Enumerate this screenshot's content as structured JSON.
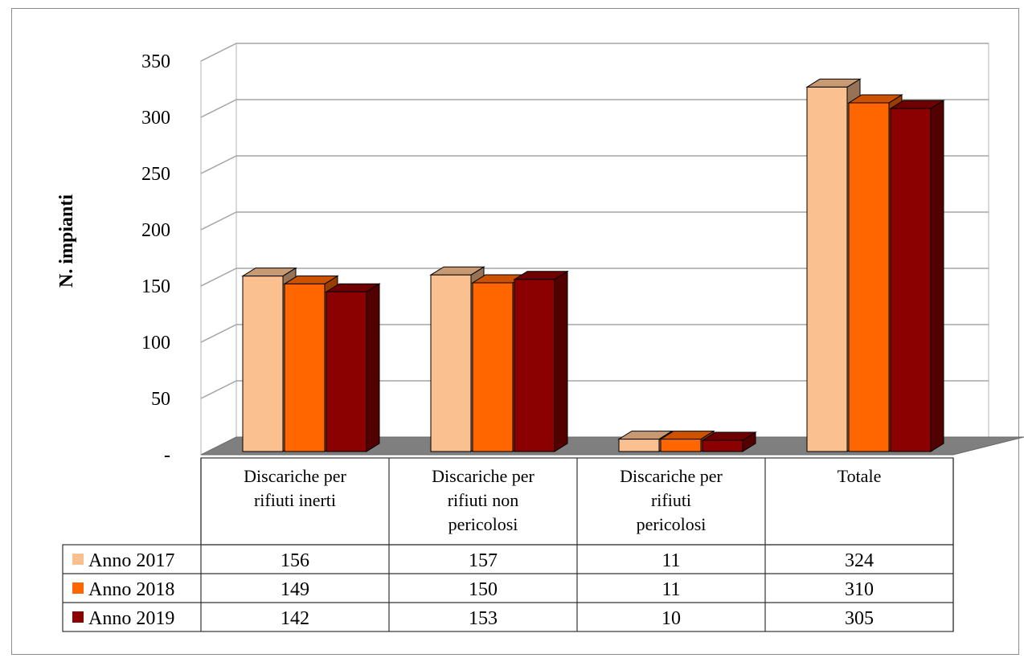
{
  "chart_data": {
    "type": "bar",
    "ylabel": "N. impianti",
    "ylim": [
      0,
      350
    ],
    "yticks": [
      "-",
      "50",
      "100",
      "150",
      "200",
      "250",
      "300",
      "350"
    ],
    "categories": [
      [
        "Discariche per",
        "rifiuti inerti"
      ],
      [
        "Discariche per",
        "rifiuti non",
        "pericolosi"
      ],
      [
        "Discariche per",
        "rifiuti",
        "pericolosi"
      ],
      [
        "Totale"
      ]
    ],
    "series": [
      {
        "name": "Anno 2017",
        "color": "#FAC090",
        "values": [
          156,
          157,
          11,
          324
        ]
      },
      {
        "name": "Anno 2018",
        "color": "#FF6600",
        "values": [
          149,
          150,
          11,
          310
        ]
      },
      {
        "name": "Anno 2019",
        "color": "#8B0000",
        "values": [
          142,
          153,
          10,
          305
        ]
      }
    ],
    "grid": true,
    "legend": "data-table"
  }
}
